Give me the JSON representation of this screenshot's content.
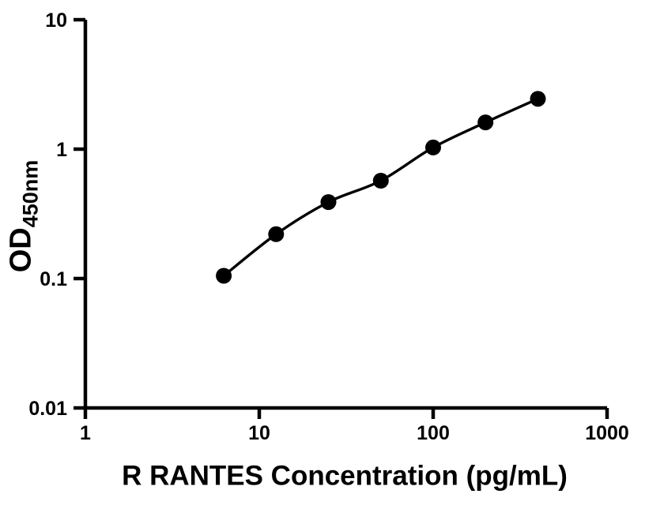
{
  "figure": {
    "background_color": "#ffffff",
    "foreground_color": "#000000"
  },
  "chart_data": {
    "type": "scatter",
    "subtype": "line-connected standard curve",
    "title": "",
    "xlabel": "R RANTES Concentration (pg/mL)",
    "ylabel_main": "OD",
    "ylabel_sub": "450nm",
    "x_scale": "log10",
    "y_scale": "log10",
    "xlim": [
      1,
      1000
    ],
    "ylim": [
      0.01,
      10
    ],
    "x_ticks": [
      1,
      10,
      100,
      1000
    ],
    "x_tick_labels": [
      "1",
      "10",
      "100",
      "1000"
    ],
    "y_ticks": [
      0.01,
      0.1,
      1,
      10
    ],
    "y_tick_labels": [
      "0.01",
      "0.1",
      "1",
      "10"
    ],
    "grid": false,
    "legend": false,
    "series": [
      {
        "name": "standard-curve",
        "marker": "filled-circle",
        "color": "#000000",
        "x": [
          6.25,
          12.5,
          25,
          50,
          100,
          200,
          400
        ],
        "y": [
          0.105,
          0.22,
          0.39,
          0.57,
          1.03,
          1.61,
          2.45
        ]
      }
    ]
  }
}
